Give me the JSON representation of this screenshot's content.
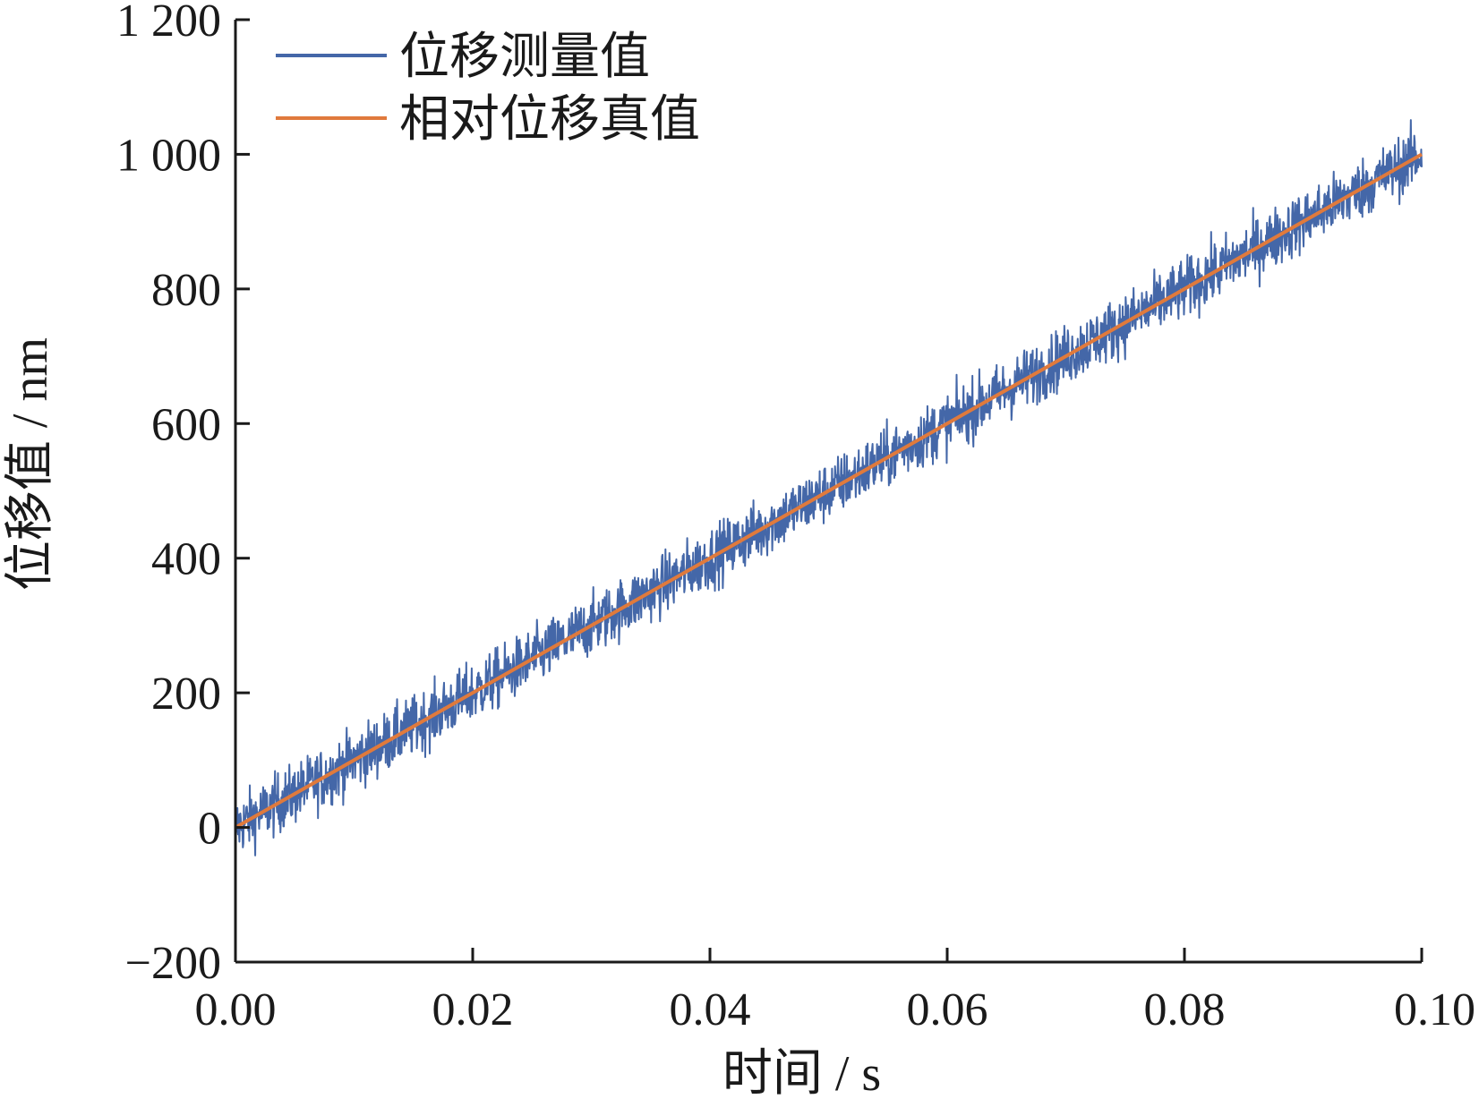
{
  "chart_data": {
    "type": "line",
    "title": "",
    "xlabel": "时间 / s",
    "ylabel": "位移值 / nm",
    "xlim": [
      0,
      0.1
    ],
    "ylim": [
      -200,
      1200
    ],
    "x_ticks": [
      0,
      0.02,
      0.04,
      0.06,
      0.08,
      0.1
    ],
    "x_tick_labels": [
      "0.00",
      "0.02",
      "0.04",
      "0.06",
      "0.08",
      "0.10"
    ],
    "y_ticks": [
      -200,
      0,
      200,
      400,
      600,
      800,
      1000,
      1200
    ],
    "y_tick_labels": [
      "−200",
      "0",
      "200",
      "400",
      "600",
      "800",
      "1 000",
      "1 200"
    ],
    "grid": false,
    "legend_position": "top-left",
    "series": [
      {
        "name": "位移测量值",
        "color": "#4467a8",
        "style": "noisy",
        "x": [
          0,
          0.1
        ],
        "y": [
          0,
          1000
        ],
        "noise_amplitude": 40
      },
      {
        "name": "相对位移真值",
        "color": "#e07a3c",
        "style": "line",
        "x": [
          0,
          0.1
        ],
        "y": [
          0,
          1000
        ]
      }
    ]
  }
}
